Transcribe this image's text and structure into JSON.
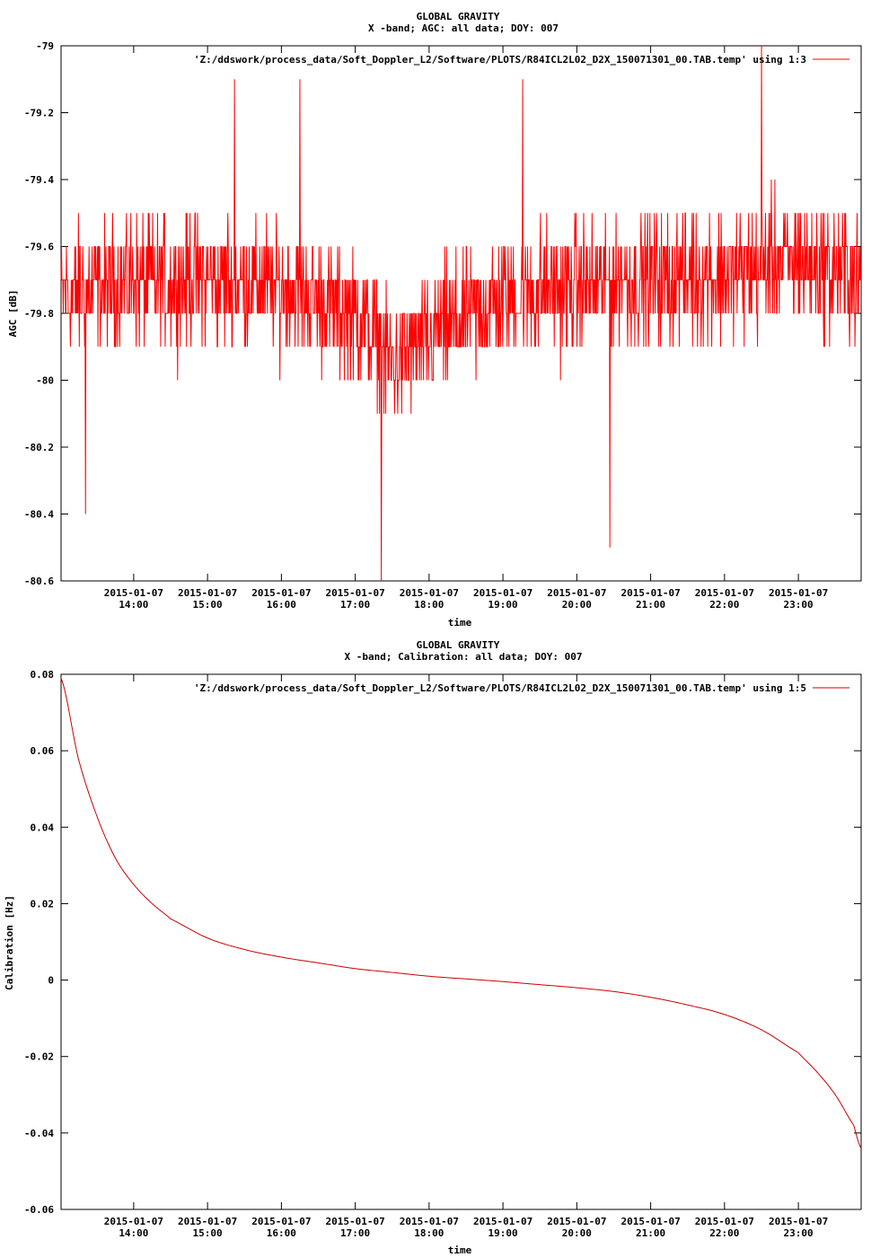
{
  "charts": [
    {
      "title": "GLOBAL GRAVITY",
      "subtitle": "X -band; AGC: all data; DOY: 007",
      "legend": "'Z:/ddswork/process_data/Soft_Doppler_L2/Software/PLOTS/R84ICL2L02_D2X_150071301_00.TAB.temp' using 1:3",
      "ylabel": "AGC [dB]",
      "xlabel": "time",
      "yticks": [
        "-79",
        "-79.2",
        "-79.4",
        "-79.6",
        "-79.8",
        "-80",
        "-80.2",
        "-80.4",
        "-80.6"
      ],
      "xticks_date": [
        "2015-01-07",
        "2015-01-07",
        "2015-01-07",
        "2015-01-07",
        "2015-01-07",
        "2015-01-07",
        "2015-01-07",
        "2015-01-07",
        "2015-01-07",
        "2015-01-07"
      ],
      "xticks_time": [
        "14:00",
        "15:00",
        "16:00",
        "17:00",
        "18:00",
        "19:00",
        "20:00",
        "21:00",
        "22:00",
        "23:00"
      ]
    },
    {
      "title": "GLOBAL GRAVITY",
      "subtitle": "X -band; Calibration: all data; DOY: 007",
      "legend": "'Z:/ddswork/process_data/Soft_Doppler_L2/Software/PLOTS/R84ICL2L02_D2X_150071301_00.TAB.temp' using 1:5",
      "ylabel": "Calibration [Hz]",
      "xlabel": "time",
      "yticks": [
        "0.08",
        "0.06",
        "0.04",
        "0.02",
        "0",
        "-0.02",
        "-0.04",
        "-0.06"
      ],
      "xticks_date": [
        "2015-01-07",
        "2015-01-07",
        "2015-01-07",
        "2015-01-07",
        "2015-01-07",
        "2015-01-07",
        "2015-01-07",
        "2015-01-07",
        "2015-01-07",
        "2015-01-07"
      ],
      "xticks_time": [
        "14:00",
        "15:00",
        "16:00",
        "17:00",
        "18:00",
        "19:00",
        "20:00",
        "21:00",
        "22:00",
        "23:00"
      ]
    }
  ],
  "chart_data": [
    {
      "type": "line",
      "title": "GLOBAL GRAVITY",
      "subtitle": "X -band; AGC: all data; DOY: 007",
      "xlabel": "time",
      "ylabel": "AGC [dB]",
      "x_range": [
        "2015-01-07 13:01",
        "2015-01-07 23:51"
      ],
      "ylim": [
        -80.6,
        -79
      ],
      "series_color": "#ff0000",
      "series": [
        {
          "name": "'Z:/ddswork/process_data/Soft_Doppler_L2/Software/PLOTS/R84ICL2L02_D2X_150071301_00.TAB.temp' using 1:3",
          "mean_profile": {
            "x": [
              "13:01",
              "14:00",
              "15:00",
              "16:00",
              "17:00",
              "17:30",
              "18:00",
              "19:00",
              "20:00",
              "21:00",
              "22:00",
              "23:00",
              "23:51"
            ],
            "y": [
              -79.75,
              -79.7,
              -79.7,
              -79.72,
              -79.8,
              -79.95,
              -79.88,
              -79.75,
              -79.72,
              -79.7,
              -79.68,
              -79.65,
              -79.7
            ]
          },
          "noise_amplitude": 0.2,
          "quantization": 0.1,
          "spikes": [
            {
              "x": "17:21",
              "y": -80.6
            },
            {
              "x": "19:16",
              "y": -79.1
            },
            {
              "x": "20:27",
              "y": -80.5
            },
            {
              "x": "22:30",
              "y": -79.0
            },
            {
              "x": "15:22",
              "y": -79.1
            },
            {
              "x": "16:15",
              "y": -79.1
            },
            {
              "x": "13:21",
              "y": -80.4
            }
          ]
        }
      ]
    },
    {
      "type": "line",
      "title": "GLOBAL GRAVITY",
      "subtitle": "X -band; Calibration: all data; DOY: 007",
      "xlabel": "time",
      "ylabel": "Calibration [Hz]",
      "x_range": [
        "2015-01-07 13:01",
        "2015-01-07 23:51"
      ],
      "ylim": [
        -0.06,
        0.08
      ],
      "series_color": "#cc0000",
      "series": [
        {
          "name": "'Z:/ddswork/process_data/Soft_Doppler_L2/Software/PLOTS/R84ICL2L02_D2X_150071301_00.TAB.temp' using 1:5",
          "x": [
            "13:01",
            "13:15",
            "13:30",
            "13:45",
            "14:00",
            "14:15",
            "14:30",
            "15:00",
            "15:30",
            "16:00",
            "16:30",
            "17:00",
            "17:30",
            "18:00",
            "18:30",
            "19:00",
            "19:30",
            "20:00",
            "20:30",
            "21:00",
            "21:30",
            "22:00",
            "22:30",
            "23:00",
            "23:15",
            "23:30",
            "23:45",
            "23:51"
          ],
          "y": [
            0.079,
            0.058,
            0.043,
            0.032,
            0.025,
            0.02,
            0.016,
            0.011,
            0.008,
            0.006,
            0.0045,
            0.003,
            0.002,
            0.001,
            0.0003,
            -0.0004,
            -0.0012,
            -0.002,
            -0.003,
            -0.0045,
            -0.0065,
            -0.009,
            -0.013,
            -0.019,
            -0.024,
            -0.03,
            -0.038,
            -0.044
          ]
        }
      ]
    }
  ]
}
